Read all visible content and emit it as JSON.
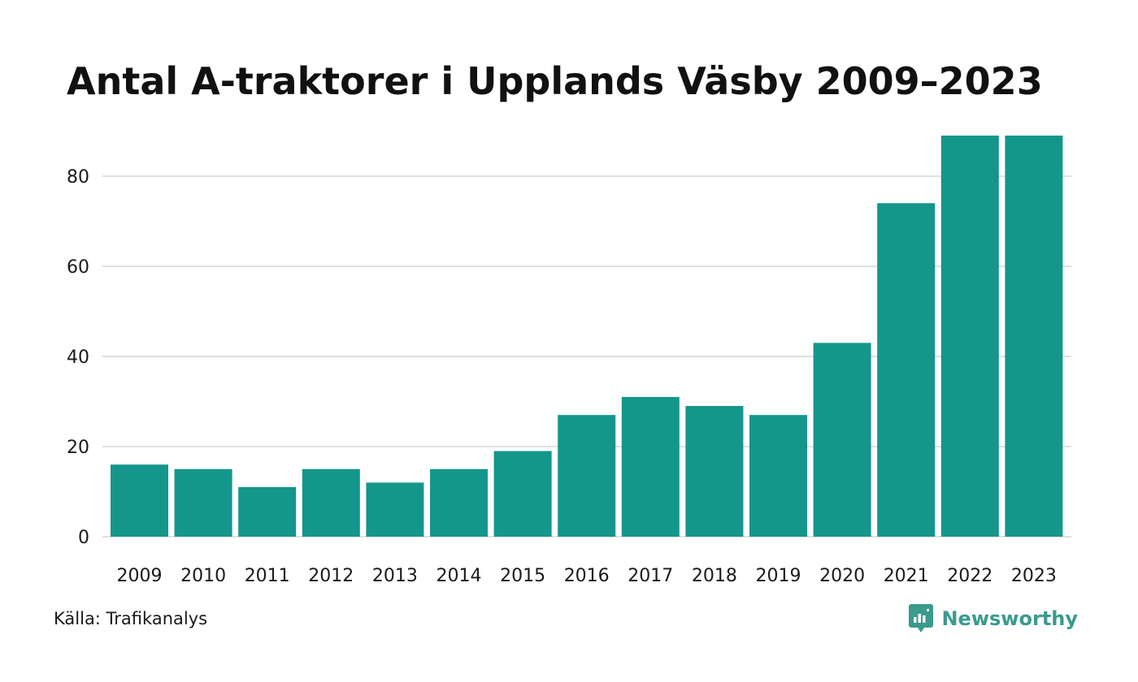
{
  "title": "Antal A-traktorer i Upplands Väsby 2009–2023",
  "source": "Källa: Trafikanalys",
  "brand": {
    "name": "Newsworthy",
    "icon": "newsworthy-logo-icon",
    "color": "#3a9a8e"
  },
  "colors": {
    "bar": "#15968a",
    "grid": "#e0e0e0"
  },
  "chart_data": {
    "type": "bar",
    "title": "Antal A-traktorer i Upplands Väsby 2009–2023",
    "xlabel": "",
    "ylabel": "",
    "categories": [
      "2009",
      "2010",
      "2011",
      "2012",
      "2013",
      "2014",
      "2015",
      "2016",
      "2017",
      "2018",
      "2019",
      "2020",
      "2021",
      "2022",
      "2023"
    ],
    "values": [
      16,
      15,
      11,
      15,
      12,
      15,
      19,
      27,
      31,
      29,
      27,
      43,
      74,
      89,
      89
    ],
    "ylim": [
      0,
      89
    ],
    "yticks": [
      0,
      20,
      40,
      60,
      80
    ],
    "grid": true,
    "legend": "none"
  }
}
